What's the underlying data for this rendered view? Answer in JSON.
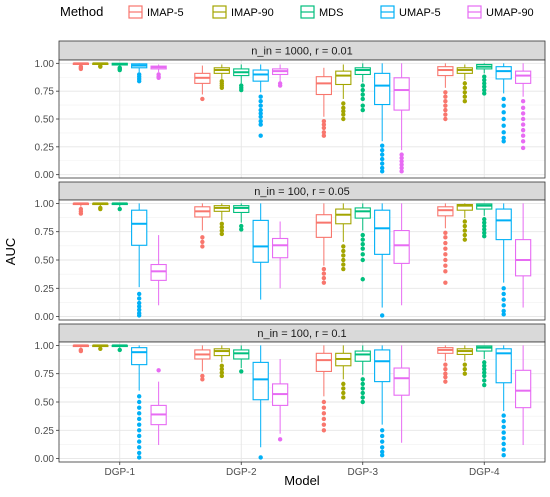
{
  "chart_data": {
    "type": "boxplot",
    "legend": {
      "title": "Method",
      "position": "top",
      "entries": [
        {
          "name": "IMAP-5",
          "color": "#F8766D"
        },
        {
          "name": "IMAP-90",
          "color": "#A3A500"
        },
        {
          "name": "MDS",
          "color": "#00BF7D"
        },
        {
          "name": "UMAP-5",
          "color": "#00B0F6"
        },
        {
          "name": "UMAP-90",
          "color": "#E76BF3"
        }
      ]
    },
    "xlabel": "Model",
    "ylabel": "AUC",
    "categories": [
      "DGP-1",
      "DGP-2",
      "DGP-3",
      "DGP-4"
    ],
    "y_ticks": [
      "0.00",
      "0.25",
      "0.50",
      "0.75",
      "1.00"
    ],
    "ylim": [
      -0.03,
      1.03
    ],
    "grid": true,
    "panels": [
      {
        "title": "n_in = 1000,  r = 0.01",
        "boxes": [
          [
            {
              "q1": 0.99,
              "med": 1.0,
              "q3": 1.0,
              "lo": 0.98,
              "hi": 1.0,
              "out": [
                0.97,
                0.96,
                0.95
              ]
            },
            {
              "q1": 0.99,
              "med": 1.0,
              "q3": 1.0,
              "lo": 0.98,
              "hi": 1.0,
              "out": [
                0.97,
                0.975
              ]
            },
            {
              "q1": 0.985,
              "med": 0.995,
              "q3": 1.0,
              "lo": 0.97,
              "hi": 1.0,
              "out": [
                0.96,
                0.95,
                0.94
              ]
            },
            {
              "q1": 0.96,
              "med": 0.98,
              "q3": 0.995,
              "lo": 0.92,
              "hi": 1.0,
              "out": [
                0.9,
                0.88,
                0.86,
                0.84
              ]
            },
            {
              "q1": 0.95,
              "med": 0.965,
              "q3": 0.975,
              "lo": 0.92,
              "hi": 0.99,
              "out": [
                0.9,
                0.88,
                0.87
              ]
            }
          ],
          [
            {
              "q1": 0.82,
              "med": 0.87,
              "q3": 0.91,
              "lo": 0.72,
              "hi": 0.98,
              "out": [
                0.68
              ]
            },
            {
              "q1": 0.91,
              "med": 0.94,
              "q3": 0.96,
              "lo": 0.86,
              "hi": 0.99,
              "out": [
                0.84,
                0.82,
                0.8,
                0.78
              ]
            },
            {
              "q1": 0.89,
              "med": 0.92,
              "q3": 0.95,
              "lo": 0.82,
              "hi": 0.99,
              "out": [
                0.8,
                0.78,
                0.76
              ]
            },
            {
              "q1": 0.84,
              "med": 0.9,
              "q3": 0.94,
              "lo": 0.74,
              "hi": 0.99,
              "out": [
                0.7,
                0.66,
                0.62,
                0.58,
                0.55,
                0.52,
                0.48,
                0.45,
                0.35
              ]
            },
            {
              "q1": 0.9,
              "med": 0.93,
              "q3": 0.95,
              "lo": 0.84,
              "hi": 0.99,
              "out": [
                0.82,
                0.8
              ]
            }
          ],
          [
            {
              "q1": 0.72,
              "med": 0.82,
              "q3": 0.88,
              "lo": 0.52,
              "hi": 0.96,
              "out": [
                0.48,
                0.45,
                0.42,
                0.38,
                0.35
              ]
            },
            {
              "q1": 0.81,
              "med": 0.89,
              "q3": 0.93,
              "lo": 0.68,
              "hi": 0.99,
              "out": [
                0.64,
                0.6,
                0.57,
                0.54,
                0.5
              ]
            },
            {
              "q1": 0.9,
              "med": 0.94,
              "q3": 0.96,
              "lo": 0.83,
              "hi": 1.0,
              "out": [
                0.8,
                0.76,
                0.72,
                0.68,
                0.62,
                0.58
              ]
            },
            {
              "q1": 0.63,
              "med": 0.8,
              "q3": 0.91,
              "lo": 0.3,
              "hi": 1.0,
              "out": [
                0.26,
                0.22,
                0.18,
                0.14,
                0.1,
                0.06,
                0.03
              ]
            },
            {
              "q1": 0.58,
              "med": 0.76,
              "q3": 0.87,
              "lo": 0.22,
              "hi": 1.0,
              "out": [
                0.18,
                0.15,
                0.12,
                0.09,
                0.06,
                0.03
              ]
            }
          ],
          [
            {
              "q1": 0.89,
              "med": 0.94,
              "q3": 0.97,
              "lo": 0.78,
              "hi": 1.0,
              "out": [
                0.74,
                0.7,
                0.66,
                0.62,
                0.58,
                0.54,
                0.5
              ]
            },
            {
              "q1": 0.91,
              "med": 0.94,
              "q3": 0.96,
              "lo": 0.85,
              "hi": 0.99,
              "out": [
                0.82,
                0.78,
                0.74,
                0.7,
                0.66
              ]
            },
            {
              "q1": 0.95,
              "med": 0.97,
              "q3": 0.99,
              "lo": 0.91,
              "hi": 1.0,
              "out": [
                0.88,
                0.85,
                0.82,
                0.79,
                0.76,
                0.73
              ]
            },
            {
              "q1": 0.86,
              "med": 0.93,
              "q3": 0.97,
              "lo": 0.73,
              "hi": 1.0,
              "out": [
                0.68,
                0.62,
                0.56,
                0.5,
                0.44,
                0.38,
                0.33,
                0.3
              ]
            },
            {
              "q1": 0.82,
              "med": 0.89,
              "q3": 0.93,
              "lo": 0.7,
              "hi": 1.0,
              "out": [
                0.66,
                0.6,
                0.55,
                0.5,
                0.45,
                0.4,
                0.35,
                0.3,
                0.24
              ]
            }
          ]
        ]
      },
      {
        "title": "n_in = 100,  r = 0.05",
        "boxes": [
          [
            {
              "q1": 0.99,
              "med": 1.0,
              "q3": 1.0,
              "lo": 0.97,
              "hi": 1.0,
              "out": [
                0.95,
                0.93,
                0.91
              ]
            },
            {
              "q1": 0.99,
              "med": 1.0,
              "q3": 1.0,
              "lo": 0.97,
              "hi": 1.0,
              "out": [
                0.96,
                0.95
              ]
            },
            {
              "q1": 0.99,
              "med": 1.0,
              "q3": 1.0,
              "lo": 0.97,
              "hi": 1.0,
              "out": [
                0.95
              ]
            },
            {
              "q1": 0.63,
              "med": 0.82,
              "q3": 0.94,
              "lo": 0.26,
              "hi": 1.0,
              "out": [
                0.2,
                0.16,
                0.12,
                0.09,
                0.06,
                0.03,
                0.01
              ]
            },
            {
              "q1": 0.32,
              "med": 0.4,
              "q3": 0.46,
              "lo": 0.1,
              "hi": 0.72,
              "out": []
            }
          ],
          [
            {
              "q1": 0.88,
              "med": 0.93,
              "q3": 0.97,
              "lo": 0.76,
              "hi": 1.0,
              "out": [
                0.7,
                0.66,
                0.62
              ]
            },
            {
              "q1": 0.93,
              "med": 0.96,
              "q3": 0.98,
              "lo": 0.85,
              "hi": 1.0,
              "out": [
                0.82,
                0.79,
                0.76,
                0.73
              ]
            },
            {
              "q1": 0.92,
              "med": 0.96,
              "q3": 0.98,
              "lo": 0.83,
              "hi": 1.0,
              "out": [
                0.8,
                0.77
              ]
            },
            {
              "q1": 0.48,
              "med": 0.62,
              "q3": 0.85,
              "lo": 0.15,
              "hi": 1.0,
              "out": []
            },
            {
              "q1": 0.52,
              "med": 0.63,
              "q3": 0.69,
              "lo": 0.25,
              "hi": 0.84,
              "out": []
            }
          ],
          [
            {
              "q1": 0.7,
              "med": 0.83,
              "q3": 0.9,
              "lo": 0.45,
              "hi": 1.0,
              "out": [
                0.42,
                0.38,
                0.34,
                0.3
              ]
            },
            {
              "q1": 0.82,
              "med": 0.9,
              "q3": 0.95,
              "lo": 0.66,
              "hi": 1.0,
              "out": [
                0.62,
                0.58,
                0.54,
                0.5,
                0.46,
                0.42
              ]
            },
            {
              "q1": 0.87,
              "med": 0.93,
              "q3": 0.96,
              "lo": 0.76,
              "hi": 1.0,
              "out": [
                0.72,
                0.68,
                0.64,
                0.6,
                0.55,
                0.5,
                0.33
              ]
            },
            {
              "q1": 0.55,
              "med": 0.78,
              "q3": 0.94,
              "lo": 0.08,
              "hi": 1.0,
              "out": [
                0.01
              ]
            },
            {
              "q1": 0.47,
              "med": 0.63,
              "q3": 0.76,
              "lo": 0.1,
              "hi": 1.0,
              "out": []
            }
          ],
          [
            {
              "q1": 0.89,
              "med": 0.94,
              "q3": 0.97,
              "lo": 0.78,
              "hi": 1.0,
              "out": [
                0.74,
                0.7,
                0.65,
                0.6,
                0.55,
                0.5,
                0.45,
                0.4,
                0.3
              ]
            },
            {
              "q1": 0.94,
              "med": 0.98,
              "q3": 0.99,
              "lo": 0.87,
              "hi": 1.0,
              "out": [
                0.84,
                0.8,
                0.76,
                0.72,
                0.68
              ]
            },
            {
              "q1": 0.95,
              "med": 0.98,
              "q3": 0.995,
              "lo": 0.89,
              "hi": 1.0,
              "out": [
                0.86,
                0.83,
                0.8,
                0.77,
                0.74,
                0.71
              ]
            },
            {
              "q1": 0.68,
              "med": 0.85,
              "q3": 0.95,
              "lo": 0.3,
              "hi": 1.0,
              "out": [
                0.25,
                0.2,
                0.15,
                0.1,
                0.05,
                0.02
              ]
            },
            {
              "q1": 0.36,
              "med": 0.5,
              "q3": 0.68,
              "lo": 0.08,
              "hi": 1.0,
              "out": []
            }
          ]
        ]
      },
      {
        "title": "n_in = 100,  r = 0.1",
        "boxes": [
          [
            {
              "q1": 0.99,
              "med": 1.0,
              "q3": 1.0,
              "lo": 0.98,
              "hi": 1.0,
              "out": [
                0.96,
                0.95
              ]
            },
            {
              "q1": 0.99,
              "med": 1.0,
              "q3": 1.0,
              "lo": 0.98,
              "hi": 1.0,
              "out": [
                0.97
              ]
            },
            {
              "q1": 0.99,
              "med": 1.0,
              "q3": 1.0,
              "lo": 0.98,
              "hi": 1.0,
              "out": [
                0.96
              ]
            },
            {
              "q1": 0.83,
              "med": 0.94,
              "q3": 0.98,
              "lo": 0.6,
              "hi": 1.0,
              "out": [
                0.55,
                0.5,
                0.45,
                0.4,
                0.35,
                0.3,
                0.25,
                0.2,
                0.15,
                0.1,
                0.05,
                0.01
              ]
            },
            {
              "q1": 0.3,
              "med": 0.39,
              "q3": 0.47,
              "lo": 0.12,
              "hi": 0.68,
              "out": [
                0.78
              ]
            }
          ],
          [
            {
              "q1": 0.88,
              "med": 0.92,
              "q3": 0.96,
              "lo": 0.77,
              "hi": 1.0,
              "out": [
                0.73,
                0.7
              ]
            },
            {
              "q1": 0.91,
              "med": 0.95,
              "q3": 0.97,
              "lo": 0.85,
              "hi": 1.0,
              "out": [
                0.82,
                0.79,
                0.76,
                0.73
              ]
            },
            {
              "q1": 0.88,
              "med": 0.93,
              "q3": 0.96,
              "lo": 0.8,
              "hi": 1.0,
              "out": [
                0.77
              ]
            },
            {
              "q1": 0.52,
              "med": 0.7,
              "q3": 0.85,
              "lo": 0.1,
              "hi": 1.0,
              "out": [
                0.01
              ]
            },
            {
              "q1": 0.47,
              "med": 0.57,
              "q3": 0.66,
              "lo": 0.22,
              "hi": 0.88,
              "out": [
                0.17
              ]
            }
          ],
          [
            {
              "q1": 0.77,
              "med": 0.87,
              "q3": 0.93,
              "lo": 0.55,
              "hi": 1.0,
              "out": [
                0.5,
                0.45,
                0.4,
                0.35,
                0.3,
                0.25
              ]
            },
            {
              "q1": 0.82,
              "med": 0.88,
              "q3": 0.93,
              "lo": 0.7,
              "hi": 1.0,
              "out": [
                0.66,
                0.62,
                0.58,
                0.54
              ]
            },
            {
              "q1": 0.86,
              "med": 0.92,
              "q3": 0.95,
              "lo": 0.74,
              "hi": 1.0,
              "out": [
                0.7,
                0.66,
                0.62,
                0.58,
                0.54,
                0.5
              ]
            },
            {
              "q1": 0.68,
              "med": 0.86,
              "q3": 0.96,
              "lo": 0.3,
              "hi": 1.0,
              "out": [
                0.25,
                0.2,
                0.15,
                0.1,
                0.06,
                0.03
              ]
            },
            {
              "q1": 0.56,
              "med": 0.71,
              "q3": 0.8,
              "lo": 0.14,
              "hi": 1.0,
              "out": []
            }
          ],
          [
            {
              "q1": 0.93,
              "med": 0.96,
              "q3": 0.98,
              "lo": 0.86,
              "hi": 1.0,
              "out": [
                0.83,
                0.79,
                0.75,
                0.72,
                0.68
              ]
            },
            {
              "q1": 0.92,
              "med": 0.95,
              "q3": 0.97,
              "lo": 0.86,
              "hi": 1.0,
              "out": [
                0.83,
                0.79,
                0.75
              ]
            },
            {
              "q1": 0.95,
              "med": 0.98,
              "q3": 0.995,
              "lo": 0.88,
              "hi": 1.0,
              "out": [
                0.85,
                0.82,
                0.79,
                0.76,
                0.73,
                0.69,
                0.65
              ]
            },
            {
              "q1": 0.67,
              "med": 0.93,
              "q3": 0.97,
              "lo": 0.42,
              "hi": 1.0,
              "out": [
                0.38,
                0.33,
                0.28,
                0.23,
                0.18,
                0.13,
                0.08,
                0.03
              ]
            },
            {
              "q1": 0.45,
              "med": 0.6,
              "q3": 0.78,
              "lo": 0.12,
              "hi": 1.0,
              "out": []
            }
          ]
        ]
      }
    ]
  }
}
